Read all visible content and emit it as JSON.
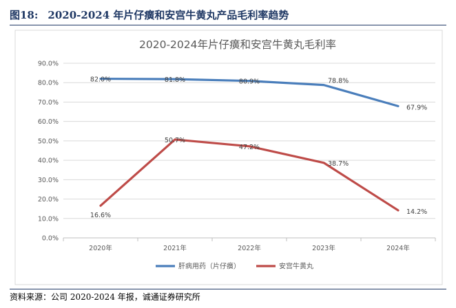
{
  "figure": {
    "number": "图18:",
    "caption": "2020-2024 年片仔癀和安宫牛黄丸产品毛利率趋势"
  },
  "source_note": "资料来源：公司 2020-2024 年报，诚通证券研究所",
  "chart_data": {
    "type": "line",
    "title": "2020-2024年片仔癀和安宫牛黄丸毛利率",
    "categories": [
      "2020年",
      "2021年",
      "2022年",
      "2023年",
      "2024年"
    ],
    "y_ticks": [
      "0.0%",
      "10.0%",
      "20.0%",
      "30.0%",
      "40.0%",
      "50.0%",
      "60.0%",
      "70.0%",
      "80.0%",
      "90.0%"
    ],
    "ylim": [
      0,
      90
    ],
    "grid": "horizontal",
    "legend_position": "bottom",
    "series": [
      {
        "name": "肝病用药（片仔癀）",
        "color": "#4a7ebb",
        "values": [
          82.0,
          81.8,
          80.9,
          78.8,
          67.9
        ],
        "labels": [
          "82.0%",
          "81.8%",
          "80.9%",
          "78.8%",
          "67.9%"
        ]
      },
      {
        "name": "安宫牛黄丸",
        "color": "#be4b48",
        "values": [
          16.6,
          50.7,
          47.2,
          38.7,
          14.2
        ],
        "labels": [
          "16.6%",
          "50.7%",
          "47.2%",
          "38.7%",
          "14.2%"
        ]
      }
    ]
  }
}
